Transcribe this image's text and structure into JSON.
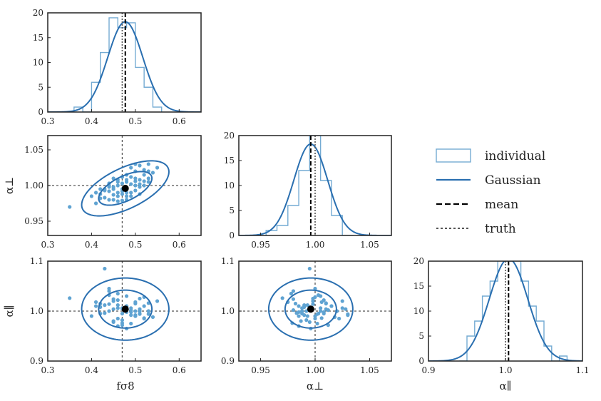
{
  "chart_data": {
    "type": "corner",
    "params": [
      {
        "key": "fs8",
        "label": "fσ8",
        "range": [
          0.3,
          0.65
        ],
        "ticks": [
          0.3,
          0.4,
          0.5,
          0.6
        ],
        "tick_labels": [
          "0.3",
          "0.4",
          "0.5",
          "0.6"
        ],
        "mean": 0.477,
        "truth": 0.47,
        "sigma": 0.04
      },
      {
        "key": "aperp",
        "label": "α⊥",
        "range": [
          0.93,
          1.07
        ],
        "ticks": [
          0.95,
          1.0,
          1.05
        ],
        "tick_labels": [
          "0.95",
          "1.00",
          "1.05"
        ],
        "mean": 0.996,
        "truth": 1.0,
        "sigma": 0.0155
      },
      {
        "key": "apar",
        "label": "α∥",
        "range": [
          0.9,
          1.1
        ],
        "ticks": [
          0.9,
          1.0,
          1.1
        ],
        "tick_labels": [
          "0.9",
          "1.0",
          "1.1"
        ],
        "mean": 1.004,
        "truth": 1.0,
        "sigma": 0.025
      }
    ],
    "hist_ylim": [
      0,
      20
    ],
    "hist_yticks": [
      0,
      5,
      10,
      15,
      20
    ],
    "hist_ytick_labels": [
      "0",
      "5",
      "10",
      "15",
      "20"
    ],
    "gaussian_peak": [
      18.2,
      18.3,
      20.5
    ],
    "histograms": [
      {
        "edges": [
          0.36,
          0.38,
          0.4,
          0.42,
          0.44,
          0.46,
          0.48,
          0.5,
          0.52,
          0.54,
          0.56
        ],
        "counts": [
          1,
          0,
          6,
          12,
          19,
          17,
          18,
          9,
          5,
          1
        ]
      },
      {
        "edges": [
          0.955,
          0.965,
          0.975,
          0.985,
          0.995,
          1.005,
          1.015,
          1.025,
          1.035
        ],
        "counts": [
          1,
          2,
          6,
          13,
          20,
          11,
          4,
          0
        ]
      },
      {
        "edges": [
          0.94,
          0.95,
          0.96,
          0.97,
          0.98,
          0.99,
          1.0,
          1.01,
          1.02,
          1.03,
          1.04,
          1.05,
          1.06,
          1.07,
          1.08
        ],
        "counts": [
          0,
          5,
          8,
          13,
          16,
          22,
          20,
          21,
          16,
          11,
          8,
          3,
          0,
          1
        ]
      }
    ],
    "scatter": {
      "fs8": [
        0.35,
        0.4,
        0.41,
        0.42,
        0.43,
        0.44,
        0.45,
        0.46,
        0.47,
        0.48,
        0.49,
        0.5,
        0.51,
        0.52,
        0.53,
        0.55,
        0.44,
        0.46,
        0.48,
        0.5,
        0.42,
        0.47,
        0.51,
        0.45,
        0.49,
        0.53,
        0.43,
        0.46,
        0.52,
        0.48,
        0.41,
        0.5,
        0.44,
        0.47,
        0.54,
        0.46,
        0.49,
        0.51,
        0.45,
        0.48,
        0.43,
        0.52,
        0.47,
        0.5,
        0.44,
        0.49,
        0.46,
        0.53,
        0.48,
        0.51,
        0.42,
        0.47,
        0.45,
        0.5,
        0.49,
        0.46,
        0.52,
        0.48,
        0.44,
        0.51,
        0.47,
        0.5,
        0.45,
        0.53,
        0.48
      ],
      "aperp": [
        0.97,
        0.985,
        0.99,
        0.988,
        0.995,
        0.992,
        0.998,
        1.0,
        0.995,
        1.005,
        1.002,
        1.01,
        1.008,
        1.015,
        1.02,
        1.025,
        0.98,
        0.985,
        0.99,
        1.0,
        0.982,
        1.003,
        0.998,
        0.987,
        1.012,
        1.005,
        0.993,
        0.978,
        1.022,
        0.996,
        0.975,
        1.03,
        1.0,
        0.988,
        1.018,
        1.008,
        0.985,
        1.028,
        0.995,
        1.015,
        0.983,
        1.0,
        0.992,
        1.02,
        0.998,
        0.99,
        1.005,
        1.01,
        0.98,
        1.002,
        0.995,
        1.012,
        0.98,
        0.993,
        1.025,
        0.99,
        1.006,
        1.008,
        1.003,
        0.988,
        0.979,
        1.006,
        1.01,
        1.03,
        0.985
      ],
      "apar": [
        1.026,
        0.99,
        1.01,
        0.995,
        1.085,
        1.0,
        1.02,
        0.985,
        1.005,
        1.03,
        0.975,
        1.015,
        0.995,
        1.01,
        1.0,
        1.02,
        1.04,
        0.97,
        1.008,
        0.99,
        1.015,
        0.995,
        1.025,
        0.98,
        1.002,
        1.0,
        1.012,
        1.035,
        0.985,
        0.965,
        1.018,
        0.992,
        1.045,
        1.006,
        0.988,
        1.022,
        0.998,
        1.004,
        0.978,
        1.01,
        0.996,
        1.028,
        0.982,
        1.0,
        1.014,
        0.992,
        1.006,
        1.016,
        1.002,
        0.994,
        1.008,
        0.972,
        1.024,
        0.99,
        1.006,
        1.012,
        0.986,
        0.998,
        1.032,
        1.0,
        0.976,
        1.018,
        1.004,
        0.994,
        1.01
      ]
    },
    "legend": {
      "position": "right",
      "items": [
        {
          "label": "individual",
          "style": "step"
        },
        {
          "label": "Gaussian",
          "style": "solid"
        },
        {
          "label": "mean",
          "style": "dashed"
        },
        {
          "label": "truth",
          "style": "dotted"
        }
      ]
    }
  },
  "colors": {
    "histogram": "#74abd3",
    "gaussian": "#2a6fb0",
    "points": "#5fa3d2",
    "mean": "#000000",
    "truth": "#555555",
    "frame": "#222222"
  }
}
